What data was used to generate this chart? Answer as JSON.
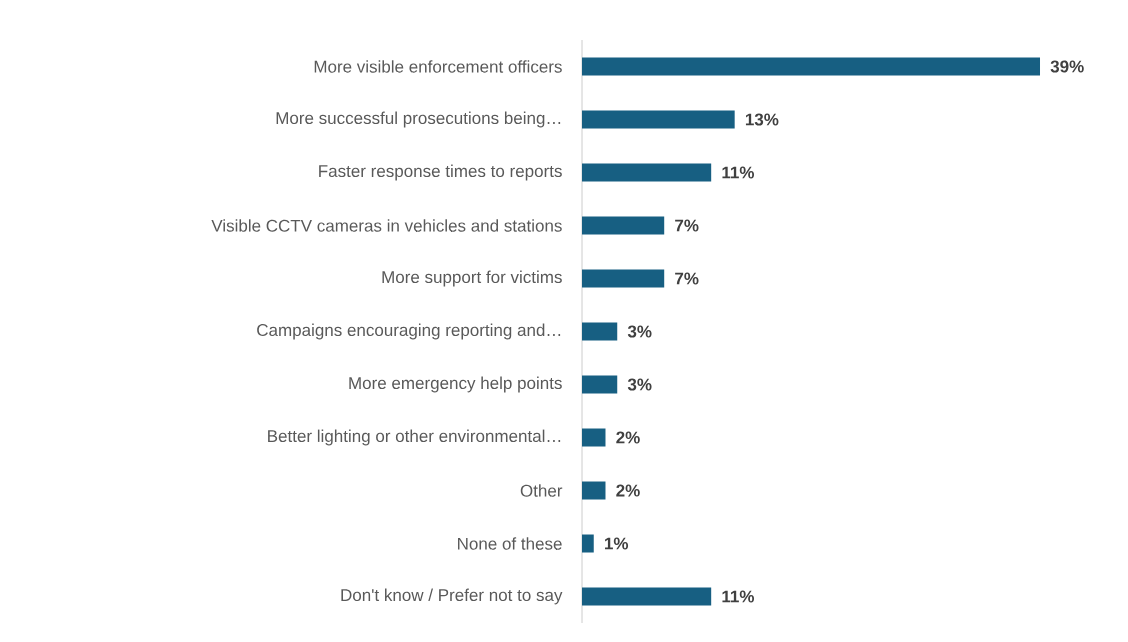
{
  "chart_data": {
    "type": "bar",
    "orientation": "horizontal",
    "categories": [
      "More visible enforcement officers",
      "More successful prosecutions being…",
      "Faster response times to reports",
      "Visible CCTV cameras in vehicles and stations",
      "More support for victims",
      "Campaigns encouraging reporting and…",
      "More emergency help points",
      "Better lighting or other environmental…",
      "Other",
      "None of these",
      "Don't know / Prefer not to say"
    ],
    "values": [
      39,
      13,
      11,
      7,
      7,
      3,
      3,
      2,
      2,
      1,
      11
    ],
    "value_labels": [
      "39%",
      "13%",
      "11%",
      "7%",
      "7%",
      "3%",
      "3%",
      "2%",
      "2%",
      "1%",
      "11%"
    ],
    "color": "#175f82",
    "xlim": [
      0,
      39
    ]
  }
}
